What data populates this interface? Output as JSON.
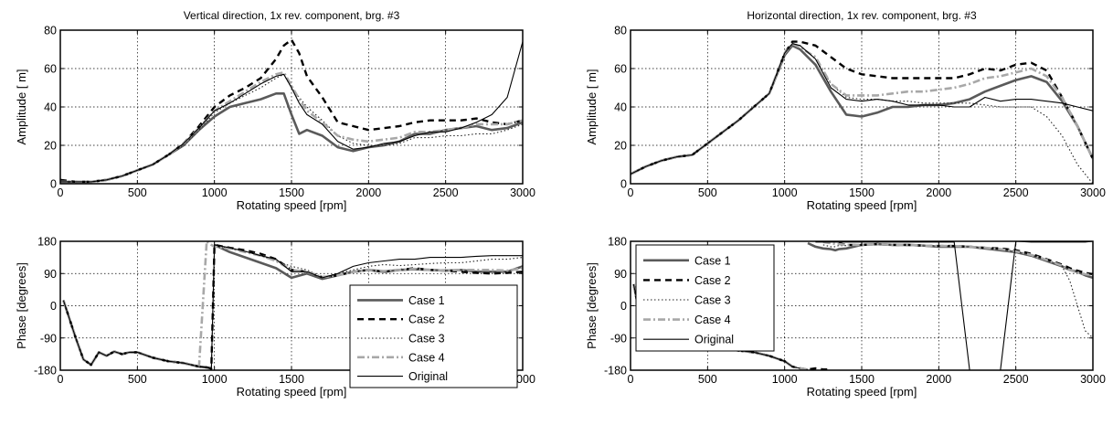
{
  "series_styles": {
    "Case 1": {
      "color": "#5a5a5a",
      "width": 2.6,
      "dash": ""
    },
    "Case 2": {
      "color": "#000000",
      "width": 2.4,
      "dash": "7,5"
    },
    "Case 3": {
      "color": "#222222",
      "width": 1.1,
      "dash": "1.5,2.5"
    },
    "Case 4": {
      "color": "#a8a8a8",
      "width": 2.6,
      "dash": "8,3,2,3"
    },
    "Original": {
      "color": "#000000",
      "width": 1.1,
      "dash": ""
    }
  },
  "chart_data": [
    {
      "type": "line",
      "title": "Vertical direction, 1x rev. component, brg. #3",
      "xlabel": "Rotating speed [rpm]",
      "ylabel": "Amplitude [ m]",
      "xlim": [
        0,
        3000
      ],
      "ylim": [
        0,
        80
      ],
      "xticks": [
        0,
        500,
        1000,
        1500,
        2000,
        2500,
        3000
      ],
      "yticks": [
        0,
        20,
        40,
        60,
        80
      ],
      "grid": true,
      "legend": "none",
      "x": [
        0,
        100,
        200,
        300,
        400,
        500,
        600,
        700,
        800,
        900,
        1000,
        1100,
        1200,
        1300,
        1400,
        1450,
        1500,
        1550,
        1600,
        1700,
        1800,
        1900,
        2000,
        2100,
        2200,
        2300,
        2400,
        2500,
        2600,
        2700,
        2800,
        2900,
        3000
      ],
      "series": [
        {
          "name": "Case 1",
          "values": [
            1,
            1,
            1,
            2,
            4,
            7,
            10,
            15,
            20,
            28,
            35,
            40,
            42,
            44,
            47,
            47,
            36,
            26,
            28,
            25,
            19,
            17,
            19,
            20,
            22,
            26,
            26,
            28,
            29,
            30,
            28,
            29,
            32
          ]
        },
        {
          "name": "Case 2",
          "values": [
            2,
            1,
            1,
            2,
            4,
            7,
            10,
            15,
            21,
            30,
            40,
            46,
            50,
            55,
            65,
            72,
            75,
            68,
            56,
            45,
            32,
            30,
            28,
            29,
            30,
            32,
            33,
            33,
            33,
            34,
            32,
            31,
            33
          ]
        },
        {
          "name": "Case 3",
          "values": [
            1,
            1,
            1,
            2,
            4,
            7,
            10,
            15,
            20,
            28,
            37,
            42,
            46,
            50,
            55,
            57,
            50,
            45,
            40,
            33,
            25,
            21,
            20,
            20,
            21,
            24,
            24,
            25,
            25,
            26,
            26,
            28,
            31
          ]
        },
        {
          "name": "Case 4",
          "values": [
            1,
            1,
            1,
            2,
            4,
            7,
            10,
            15,
            21,
            29,
            38,
            43,
            48,
            53,
            57,
            58,
            51,
            44,
            38,
            32,
            25,
            23,
            22,
            23,
            24,
            27,
            27,
            28,
            29,
            31,
            31,
            31,
            33
          ]
        },
        {
          "name": "Original",
          "values": [
            1,
            1,
            1,
            2,
            4,
            7,
            10,
            15,
            21,
            29,
            38,
            42,
            47,
            52,
            56,
            57,
            50,
            42,
            36,
            31,
            22,
            18,
            19,
            21,
            22,
            25,
            27,
            27,
            29,
            32,
            36,
            45,
            74
          ]
        }
      ]
    },
    {
      "type": "line",
      "title": "Horizontal direction, 1x rev. component, brg. #3",
      "xlabel": "Rotating speed [rpm]",
      "ylabel": "Amplitude [ m]",
      "xlim": [
        0,
        3000
      ],
      "ylim": [
        0,
        80
      ],
      "xticks": [
        0,
        500,
        1000,
        1500,
        2000,
        2500,
        3000
      ],
      "yticks": [
        0,
        20,
        40,
        60,
        80
      ],
      "grid": true,
      "legend": "none",
      "x": [
        0,
        100,
        200,
        300,
        400,
        500,
        600,
        700,
        800,
        900,
        1000,
        1050,
        1100,
        1200,
        1300,
        1400,
        1500,
        1600,
        1700,
        1800,
        1900,
        2000,
        2100,
        2200,
        2300,
        2400,
        2500,
        2600,
        2700,
        2800,
        2900,
        3000
      ],
      "series": [
        {
          "name": "Case 1",
          "values": [
            5,
            9,
            12,
            14,
            15,
            21,
            27,
            33,
            40,
            47,
            67,
            72,
            70,
            62,
            48,
            36,
            35,
            37,
            40,
            40,
            41,
            41,
            42,
            44,
            48,
            51,
            54,
            56,
            53,
            43,
            30,
            13
          ]
        },
        {
          "name": "Case 2",
          "values": [
            5,
            9,
            12,
            14,
            15,
            21,
            27,
            33,
            40,
            47,
            68,
            74,
            74,
            72,
            66,
            60,
            57,
            56,
            55,
            55,
            55,
            55,
            55,
            57,
            60,
            59,
            62,
            63,
            59,
            45,
            30,
            13
          ]
        },
        {
          "name": "Case 3",
          "values": [
            5,
            9,
            12,
            14,
            15,
            21,
            27,
            33,
            40,
            47,
            68,
            73,
            72,
            65,
            52,
            45,
            44,
            44,
            43,
            43,
            42,
            42,
            42,
            42,
            41,
            40,
            40,
            40,
            35,
            25,
            10,
            0
          ]
        },
        {
          "name": "Case 4",
          "values": [
            5,
            9,
            12,
            14,
            15,
            21,
            27,
            33,
            40,
            47,
            68,
            73,
            71,
            66,
            52,
            46,
            46,
            46,
            47,
            48,
            48,
            49,
            50,
            52,
            55,
            56,
            58,
            60,
            56,
            45,
            30,
            13
          ]
        },
        {
          "name": "Original",
          "values": [
            5,
            9,
            12,
            14,
            15,
            21,
            27,
            33,
            40,
            47,
            68,
            73,
            72,
            65,
            50,
            44,
            43,
            44,
            43,
            41,
            41,
            41,
            40,
            40,
            45,
            43,
            44,
            44,
            43,
            42,
            40,
            38
          ]
        }
      ]
    },
    {
      "type": "line",
      "title": "",
      "xlabel": "Rotating speed [rpm]",
      "ylabel": "Phase [degrees]",
      "xlim": [
        0,
        3000
      ],
      "ylim": [
        -180,
        180
      ],
      "xticks": [
        0,
        500,
        1000,
        1500,
        2000,
        2500,
        3000
      ],
      "yticks": [
        -180,
        -90,
        0,
        90,
        180
      ],
      "grid": true,
      "legend": "bottom-right",
      "x": [
        20,
        100,
        150,
        200,
        250,
        300,
        350,
        400,
        450,
        500,
        600,
        700,
        800,
        900,
        950,
        980,
        1000,
        1100,
        1200,
        1300,
        1400,
        1500,
        1600,
        1700,
        1800,
        1900,
        2000,
        2100,
        2200,
        2300,
        2400,
        2500,
        2600,
        2700,
        2800,
        2900,
        3000
      ],
      "series": [
        {
          "name": "Case 1",
          "values": [
            15,
            -90,
            -150,
            -165,
            -130,
            -140,
            -128,
            -135,
            -130,
            -130,
            -145,
            -155,
            -160,
            -170,
            -172,
            null,
            170,
            150,
            135,
            120,
            105,
            78,
            90,
            75,
            85,
            95,
            100,
            95,
            100,
            102,
            100,
            98,
            100,
            95,
            95,
            95,
            110
          ]
        },
        {
          "name": "Case 2",
          "values": [
            15,
            -90,
            -150,
            -165,
            -130,
            -140,
            -128,
            -135,
            -130,
            -130,
            -145,
            -155,
            -160,
            -170,
            -172,
            -175,
            170,
            162,
            155,
            145,
            130,
            100,
            95,
            80,
            85,
            95,
            100,
            95,
            100,
            105,
            100,
            98,
            95,
            92,
            90,
            92,
            95
          ]
        },
        {
          "name": "Case 3",
          "values": [
            15,
            -90,
            -150,
            -165,
            -130,
            -140,
            -128,
            -135,
            -130,
            -130,
            -145,
            -155,
            -160,
            -170,
            -172,
            -175,
            170,
            160,
            152,
            140,
            125,
            110,
            100,
            80,
            90,
            100,
            110,
            115,
            112,
            115,
            118,
            120,
            120,
            125,
            130,
            130,
            135
          ]
        },
        {
          "name": "Case 4",
          "values": [
            15,
            -90,
            -150,
            -165,
            -130,
            -140,
            -128,
            -135,
            -130,
            -130,
            -145,
            -155,
            -160,
            -170,
            180,
            170,
            165,
            160,
            150,
            140,
            125,
            100,
            95,
            80,
            85,
            95,
            100,
            97,
            100,
            103,
            100,
            98,
            100,
            100,
            100,
            98,
            105
          ]
        },
        {
          "name": "Original",
          "values": [
            15,
            -90,
            -150,
            -165,
            -130,
            -140,
            -128,
            -135,
            -130,
            -130,
            -145,
            -155,
            -160,
            -170,
            -172,
            -178,
            170,
            162,
            152,
            140,
            130,
            95,
            95,
            78,
            90,
            110,
            120,
            125,
            130,
            130,
            135,
            135,
            135,
            138,
            140,
            140,
            140
          ]
        }
      ]
    },
    {
      "type": "line",
      "title": "",
      "xlabel": "Rotating speed [rpm]",
      "ylabel": "Phase [degrees]",
      "xlim": [
        0,
        3000
      ],
      "ylim": [
        -180,
        180
      ],
      "xticks": [
        0,
        500,
        1000,
        1500,
        2000,
        2500,
        3000
      ],
      "yticks": [
        -180,
        -90,
        0,
        90,
        180
      ],
      "grid": true,
      "legend": "top-left",
      "x": [
        20,
        100,
        200,
        300,
        400,
        500,
        600,
        700,
        800,
        900,
        1000,
        1050,
        1100,
        1150,
        1200,
        1250,
        1300,
        1330,
        1350,
        1400,
        1500,
        1600,
        1700,
        1800,
        1900,
        2000,
        2100,
        2200,
        2300,
        2400,
        2500,
        2600,
        2700,
        2800,
        2850,
        2900,
        2950,
        3000
      ],
      "series": [
        {
          "name": "Case 1",
          "values": [
            60,
            -110,
            -110,
            -120,
            -115,
            -115,
            -120,
            -125,
            -130,
            -140,
            -155,
            -170,
            null,
            175,
            165,
            160,
            158,
            155,
            158,
            160,
            170,
            172,
            170,
            170,
            168,
            165,
            165,
            165,
            160,
            155,
            150,
            140,
            125,
            110,
            100,
            95,
            85,
            78
          ]
        },
        {
          "name": "Case 2",
          "values": [
            60,
            -110,
            -110,
            -120,
            -115,
            -115,
            -120,
            -125,
            -130,
            -140,
            -155,
            -170,
            -175,
            -178,
            -175,
            -178,
            -178,
            null,
            175,
            170,
            170,
            172,
            170,
            170,
            168,
            167,
            167,
            165,
            162,
            160,
            155,
            145,
            130,
            115,
            105,
            98,
            92,
            88
          ]
        },
        {
          "name": "Case 3",
          "values": [
            60,
            -110,
            -110,
            -120,
            -115,
            -115,
            -120,
            -125,
            -130,
            -140,
            -155,
            -170,
            -175,
            -178,
            null,
            170,
            165,
            165,
            168,
            168,
            170,
            172,
            170,
            170,
            168,
            167,
            167,
            165,
            162,
            158,
            152,
            142,
            128,
            110,
            70,
            0,
            -70,
            -90
          ]
        },
        {
          "name": "Case 4",
          "values": [
            60,
            -110,
            -110,
            -120,
            -115,
            -115,
            -120,
            -125,
            -130,
            -140,
            -155,
            -170,
            -175,
            -178,
            null,
            178,
            175,
            172,
            172,
            170,
            170,
            172,
            170,
            170,
            168,
            167,
            167,
            165,
            162,
            158,
            152,
            142,
            128,
            112,
            100,
            93,
            88,
            85
          ]
        },
        {
          "name": "Original",
          "values": [
            60,
            -110,
            -110,
            -120,
            -115,
            -115,
            -120,
            -125,
            -130,
            -140,
            -155,
            -170,
            -175,
            null,
            178,
            178,
            178,
            178,
            178,
            178,
            178,
            178,
            178,
            178,
            178,
            178,
            178,
            -180,
            -180,
            -180,
            180,
            178,
            178,
            178,
            178,
            178,
            178,
            180
          ]
        }
      ]
    }
  ]
}
